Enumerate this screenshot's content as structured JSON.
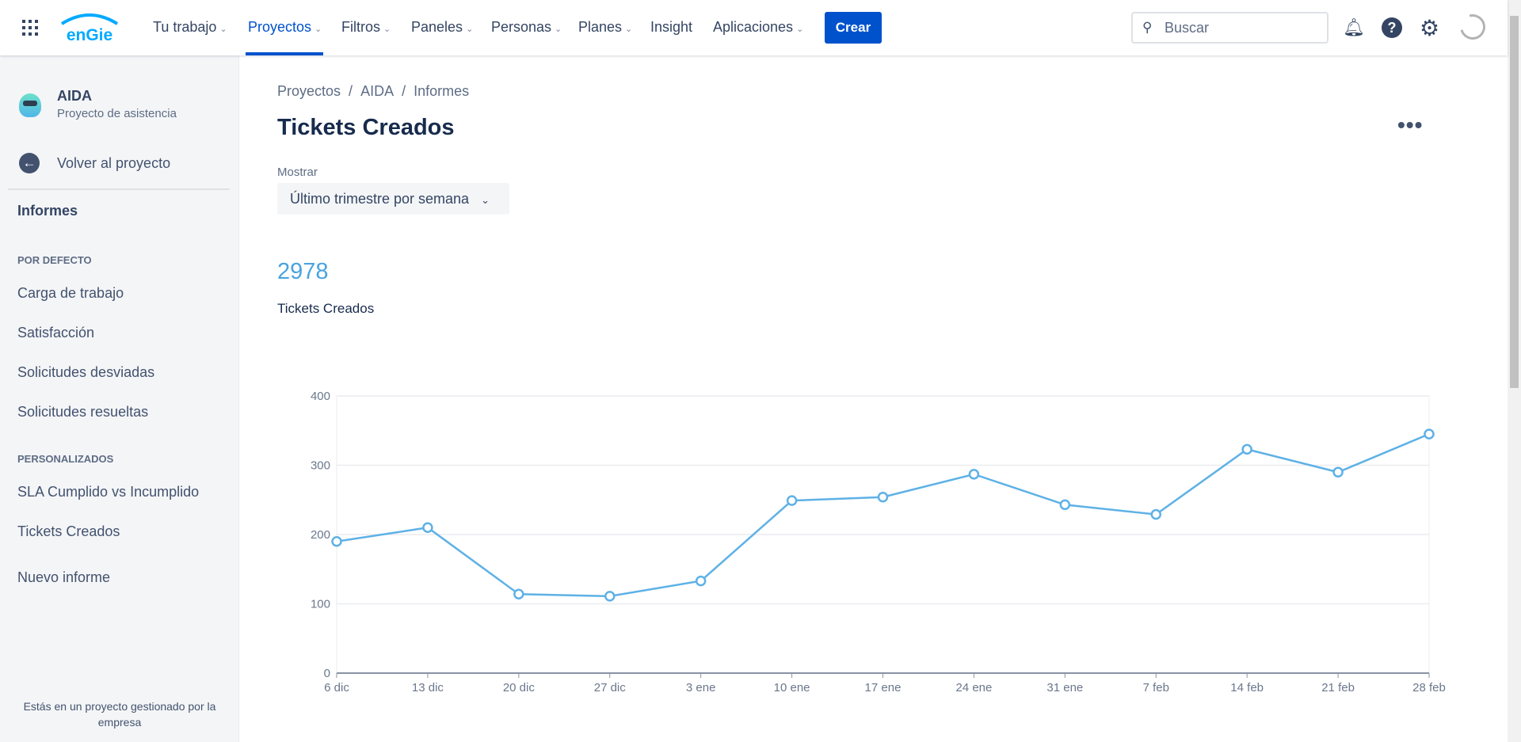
{
  "topbar": {
    "logo": "engie",
    "nav": [
      {
        "label": "Tu trabajo",
        "dropdown": true
      },
      {
        "label": "Proyectos",
        "dropdown": true,
        "active": true
      },
      {
        "label": "Filtros",
        "dropdown": true
      },
      {
        "label": "Paneles",
        "dropdown": true
      },
      {
        "label": "Personas",
        "dropdown": true
      },
      {
        "label": "Planes",
        "dropdown": true
      },
      {
        "label": "Insight",
        "dropdown": false
      },
      {
        "label": "Aplicaciones",
        "dropdown": true
      }
    ],
    "create_label": "Crear",
    "search_placeholder": "Buscar",
    "icons": [
      "notifications-icon",
      "help-icon",
      "settings-icon",
      "profile-avatar"
    ],
    "accent": "#0052cc"
  },
  "sidebar": {
    "project_name": "AIDA",
    "project_type": "Proyecto de asistencia",
    "back_label": "Volver al proyecto",
    "section_title": "Informes",
    "default_header": "POR DEFECTO",
    "default_items": [
      "Carga de trabajo",
      "Satisfacción",
      "Solicitudes desviadas",
      "Solicitudes resueltas"
    ],
    "custom_header": "PERSONALIZADOS",
    "custom_items": [
      "SLA Cumplido vs Incumplido",
      "Tickets Creados"
    ],
    "new_report": "Nuevo informe",
    "footer": "Estás en un proyecto gestionado por la empresa"
  },
  "main": {
    "breadcrumb": [
      "Proyectos",
      "AIDA",
      "Informes"
    ],
    "title": "Tickets Creados",
    "show_label": "Mostrar",
    "show_value": "Último trimestre por semana",
    "total": "2978",
    "total_label": "Tickets Creados"
  },
  "chart_data": {
    "type": "line",
    "categories": [
      "6 dic",
      "13 dic",
      "20 dic",
      "27 dic",
      "3 ene",
      "10 ene",
      "17 ene",
      "24 ene",
      "31 ene",
      "7 feb",
      "14 feb",
      "21 feb",
      "28 feb"
    ],
    "values": [
      190,
      210,
      114,
      111,
      133,
      249,
      254,
      287,
      243,
      229,
      323,
      290,
      345
    ],
    "ylim": [
      0,
      400
    ],
    "yticks": [
      0,
      100,
      200,
      300,
      400
    ],
    "grid": true,
    "color": "#5eb1e6"
  }
}
